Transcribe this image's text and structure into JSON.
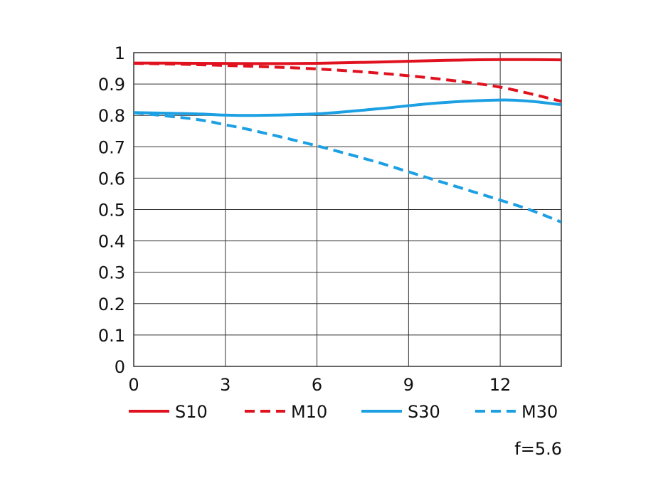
{
  "chart_data": {
    "type": "line",
    "xlim": [
      0,
      14
    ],
    "ylim": [
      0,
      1
    ],
    "xticks": [
      0,
      3,
      6,
      9,
      12
    ],
    "yticks": [
      0,
      0.1,
      0.2,
      0.3,
      0.4,
      0.5,
      0.6,
      0.7,
      0.8,
      0.9,
      1
    ],
    "ytick_labels": [
      "0",
      "0.1",
      "0.2",
      "0.3",
      "0.4",
      "0.5",
      "0.6",
      "0.7",
      "0.8",
      "0.9",
      "1"
    ],
    "grid": true,
    "legend_position": "bottom",
    "annotation": "f=5.6",
    "series": [
      {
        "name": "S10",
        "color": "#e0121f",
        "dashed": false,
        "points": [
          [
            0,
            0.967
          ],
          [
            2,
            0.966
          ],
          [
            4,
            0.965
          ],
          [
            6,
            0.966
          ],
          [
            8,
            0.97
          ],
          [
            10,
            0.975
          ],
          [
            12,
            0.978
          ],
          [
            14,
            0.977
          ]
        ]
      },
      {
        "name": "M10",
        "color": "#e0121f",
        "dashed": true,
        "points": [
          [
            0,
            0.966
          ],
          [
            2,
            0.962
          ],
          [
            4,
            0.956
          ],
          [
            6,
            0.948
          ],
          [
            8,
            0.935
          ],
          [
            10,
            0.916
          ],
          [
            12,
            0.89
          ],
          [
            14,
            0.845
          ]
        ]
      },
      {
        "name": "S30",
        "color": "#1ca0e3",
        "dashed": false,
        "points": [
          [
            0,
            0.809
          ],
          [
            2,
            0.805
          ],
          [
            3,
            0.801
          ],
          [
            4,
            0.8
          ],
          [
            6,
            0.805
          ],
          [
            8,
            0.821
          ],
          [
            10,
            0.84
          ],
          [
            12,
            0.849
          ],
          [
            13,
            0.845
          ],
          [
            14,
            0.834
          ]
        ]
      },
      {
        "name": "M30",
        "color": "#1ca0e3",
        "dashed": true,
        "points": [
          [
            0,
            0.809
          ],
          [
            2,
            0.788
          ],
          [
            3,
            0.77
          ],
          [
            4,
            0.75
          ],
          [
            6,
            0.703
          ],
          [
            8,
            0.65
          ],
          [
            9,
            0.62
          ],
          [
            10,
            0.59
          ],
          [
            12,
            0.53
          ],
          [
            13,
            0.498
          ],
          [
            14,
            0.46
          ]
        ]
      }
    ]
  }
}
